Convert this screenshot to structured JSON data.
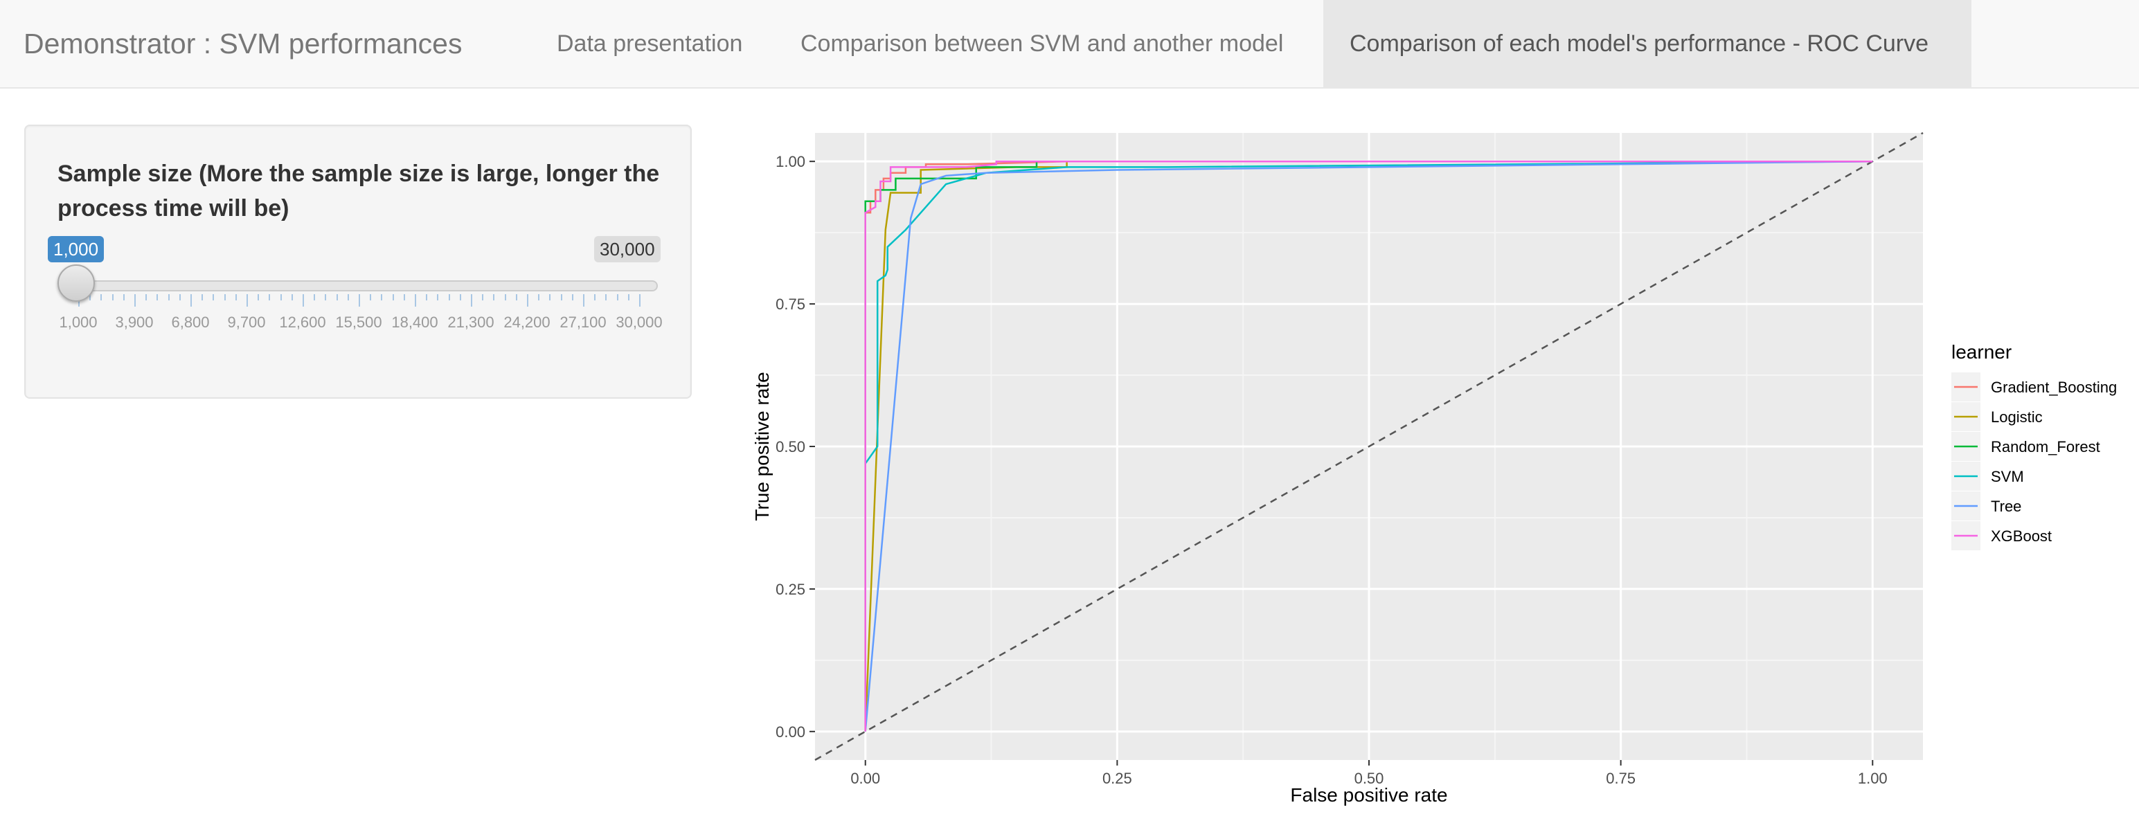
{
  "navbar": {
    "brand": "Demonstrator : SVM performances",
    "tabs": [
      {
        "label": "Data presentation",
        "active": false
      },
      {
        "label": "Comparison between SVM and another model",
        "active": false
      },
      {
        "label": "Comparison of each model's performance - ROC Curve",
        "active": true
      }
    ]
  },
  "sidebar": {
    "slider": {
      "label": "Sample size (More the sample size is large, longer the process time will be)",
      "value": "1,000",
      "max_label": "30,000",
      "value_fraction": 0,
      "tick_labels": [
        "1,000",
        "3,900",
        "6,800",
        "9,700",
        "12,600",
        "15,500",
        "18,400",
        "21,300",
        "24,200",
        "27,100",
        "30,000"
      ]
    }
  },
  "colors": {
    "panel_background": "#ebebeb",
    "accent": "#428bca"
  },
  "chart_data": {
    "type": "line",
    "xlabel": "False positive rate",
    "ylabel": "True positive rate",
    "xlim": [
      -0.05,
      1.05
    ],
    "ylim": [
      -0.05,
      1.05
    ],
    "x_ticks": [
      0.0,
      0.25,
      0.5,
      0.75,
      1.0
    ],
    "y_ticks": [
      0.0,
      0.25,
      0.5,
      0.75,
      1.0
    ],
    "x_tick_labels": [
      "0.00",
      "0.25",
      "0.50",
      "0.75",
      "1.00"
    ],
    "y_tick_labels": [
      "0.00",
      "0.25",
      "0.50",
      "0.75",
      "1.00"
    ],
    "grid": true,
    "legend_title": "learner",
    "legend_position": "right",
    "reference_line": "diagonal dashed",
    "series": [
      {
        "name": "Gradient_Boosting",
        "color": "#f8766d",
        "x": [
          0,
          0,
          0.005,
          0.005,
          0.01,
          0.01,
          0.018,
          0.018,
          0.025,
          0.025,
          0.04,
          0.04,
          0.06,
          0.06,
          0.1,
          0.2,
          1.0
        ],
        "y": [
          0,
          0.91,
          0.91,
          0.93,
          0.93,
          0.95,
          0.95,
          0.97,
          0.97,
          0.98,
          0.98,
          0.99,
          0.99,
          0.995,
          0.995,
          1.0,
          1.0
        ]
      },
      {
        "name": "Logistic",
        "color": "#b79f00",
        "x": [
          0,
          0.02,
          0.025,
          0.055,
          0.055,
          0.15,
          0.2,
          0.2,
          1.0
        ],
        "y": [
          0,
          0.88,
          0.945,
          0.945,
          0.985,
          0.99,
          0.99,
          1.0,
          1.0
        ]
      },
      {
        "name": "Random_Forest",
        "color": "#00ba38",
        "x": [
          0,
          0,
          0.015,
          0.015,
          0.03,
          0.03,
          0.11,
          0.11,
          0.17,
          0.17,
          0.24,
          0.24,
          1.0
        ],
        "y": [
          0,
          0.93,
          0.93,
          0.95,
          0.95,
          0.97,
          0.97,
          0.99,
          0.99,
          1.0,
          1.0,
          1.0,
          1.0
        ]
      },
      {
        "name": "SVM",
        "color": "#00bfc4",
        "x": [
          0,
          0.012,
          0.012,
          0.02,
          0.022,
          0.022,
          0.04,
          0.06,
          0.08,
          0.12,
          0.2,
          0.3,
          1.0
        ],
        "y": [
          0.47,
          0.5,
          0.79,
          0.8,
          0.81,
          0.85,
          0.88,
          0.92,
          0.96,
          0.98,
          0.99,
          0.99,
          1.0
        ]
      },
      {
        "name": "Tree",
        "color": "#619cff",
        "x": [
          0,
          0.045,
          0.055,
          0.08,
          0.12,
          0.25,
          1.0
        ],
        "y": [
          0,
          0.9,
          0.96,
          0.975,
          0.98,
          0.985,
          1.0
        ]
      },
      {
        "name": "XGBoost",
        "color": "#f564e3",
        "x": [
          0,
          0,
          0.01,
          0.01,
          0.015,
          0.015,
          0.025,
          0.025,
          0.05,
          0.1,
          0.13,
          0.13,
          1.0
        ],
        "y": [
          0,
          0.91,
          0.92,
          0.93,
          0.93,
          0.965,
          0.965,
          0.99,
          0.99,
          0.99,
          0.995,
          1.0,
          1.0
        ]
      }
    ]
  }
}
